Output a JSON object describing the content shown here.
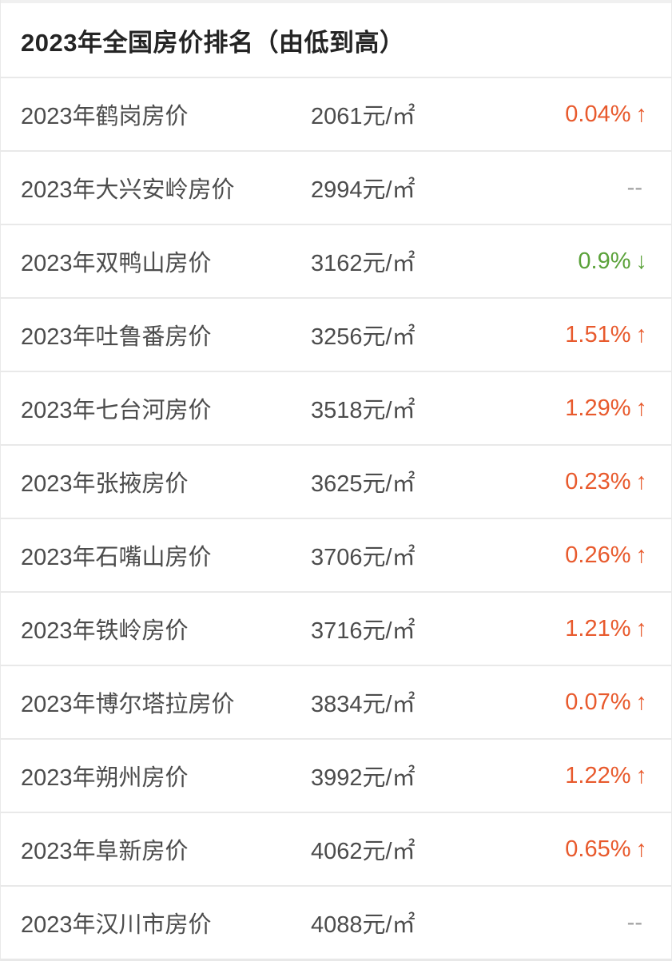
{
  "header": {
    "title": "2023年全国房价排名（由低到高）"
  },
  "colors": {
    "up": "#e85a2d",
    "down": "#5ba23a",
    "none": "#a0a0a0"
  },
  "rows": [
    {
      "name": "2023年鹤岗房价",
      "price": "2061元/㎡",
      "change": "0.04%",
      "arrow": "↑",
      "direction": "up"
    },
    {
      "name": "2023年大兴安岭房价",
      "price": "2994元/㎡",
      "change": "--",
      "arrow": "",
      "direction": "none"
    },
    {
      "name": "2023年双鸭山房价",
      "price": "3162元/㎡",
      "change": "0.9%",
      "arrow": "↓",
      "direction": "down"
    },
    {
      "name": "2023年吐鲁番房价",
      "price": "3256元/㎡",
      "change": "1.51%",
      "arrow": "↑",
      "direction": "up"
    },
    {
      "name": "2023年七台河房价",
      "price": "3518元/㎡",
      "change": "1.29%",
      "arrow": "↑",
      "direction": "up"
    },
    {
      "name": "2023年张掖房价",
      "price": "3625元/㎡",
      "change": "0.23%",
      "arrow": "↑",
      "direction": "up"
    },
    {
      "name": "2023年石嘴山房价",
      "price": "3706元/㎡",
      "change": "0.26%",
      "arrow": "↑",
      "direction": "up"
    },
    {
      "name": "2023年铁岭房价",
      "price": "3716元/㎡",
      "change": "1.21%",
      "arrow": "↑",
      "direction": "up"
    },
    {
      "name": "2023年博尔塔拉房价",
      "price": "3834元/㎡",
      "change": "0.07%",
      "arrow": "↑",
      "direction": "up"
    },
    {
      "name": "2023年朔州房价",
      "price": "3992元/㎡",
      "change": "1.22%",
      "arrow": "↑",
      "direction": "up"
    },
    {
      "name": "2023年阜新房价",
      "price": "4062元/㎡",
      "change": "0.65%",
      "arrow": "↑",
      "direction": "up"
    },
    {
      "name": "2023年汉川市房价",
      "price": "4088元/㎡",
      "change": "--",
      "arrow": "",
      "direction": "none"
    }
  ]
}
